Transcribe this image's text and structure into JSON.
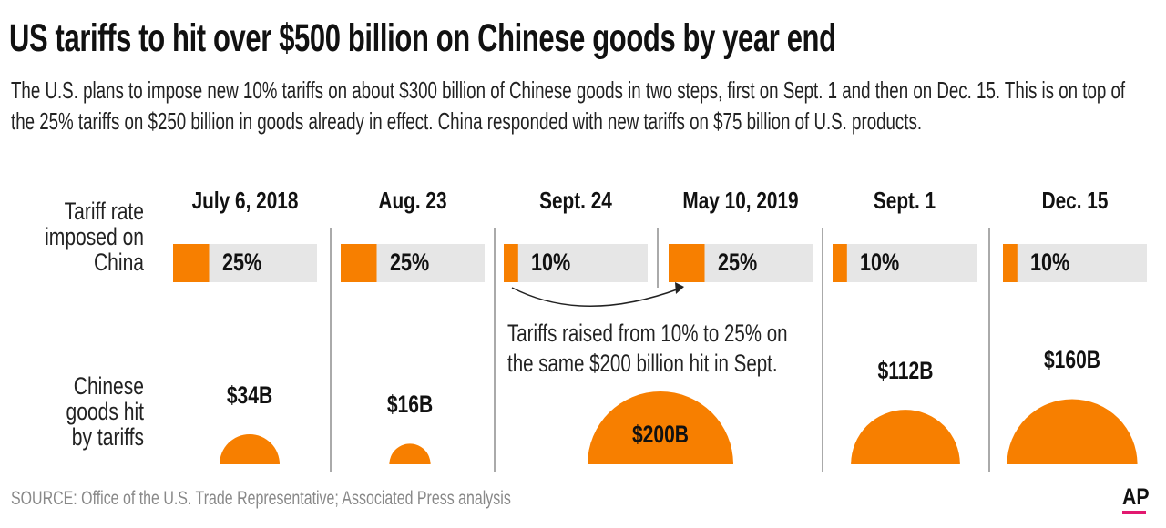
{
  "title": "US tariffs to hit over $500 billion on Chinese goods by year end",
  "subtitle": "The U.S. plans to impose new 10% tariffs on about $300 billion of Chinese goods in two steps, first on Sept. 1 and then on Dec. 15. This is on top of the 25% tariffs on $250 billion in goods already in effect. China responded with new tariffs on $75 billion of U.S. products.",
  "source": "SOURCE: Office of the U.S. Trade Representative; Associated Press analysis",
  "logo": "AP",
  "colors": {
    "orange": "#f77f00",
    "bar_track": "#e6e6e6",
    "logo_bar": "#e2186f"
  },
  "chart_data": {
    "type": "bar",
    "row_labels": {
      "tariff_rate": "Tariff rate imposed on China",
      "goods": "Chinese goods hit by tariffs"
    },
    "categories": [
      "July 6, 2018",
      "Aug. 23",
      "Sept. 24",
      "May 10, 2019",
      "Sept. 1",
      "Dec. 15"
    ],
    "tariff_rate_pct": [
      25,
      25,
      10,
      25,
      10,
      10
    ],
    "tariff_rate_labels": [
      "25%",
      "25%",
      "10%",
      "25%",
      "10%",
      "10%"
    ],
    "goods_billion_usd": [
      34,
      16,
      200,
      112,
      160
    ],
    "goods_labels": [
      "$34B",
      "$16B",
      "$200B",
      "$112B",
      "$160B"
    ],
    "goods_categories": [
      "July 6, 2018",
      "Aug. 23",
      "Sept. 24 / May 10, 2019",
      "Sept. 1",
      "Dec. 15"
    ],
    "annotation": "Tariffs raised from 10% to 25% on the same $200 billion hit in Sept."
  }
}
